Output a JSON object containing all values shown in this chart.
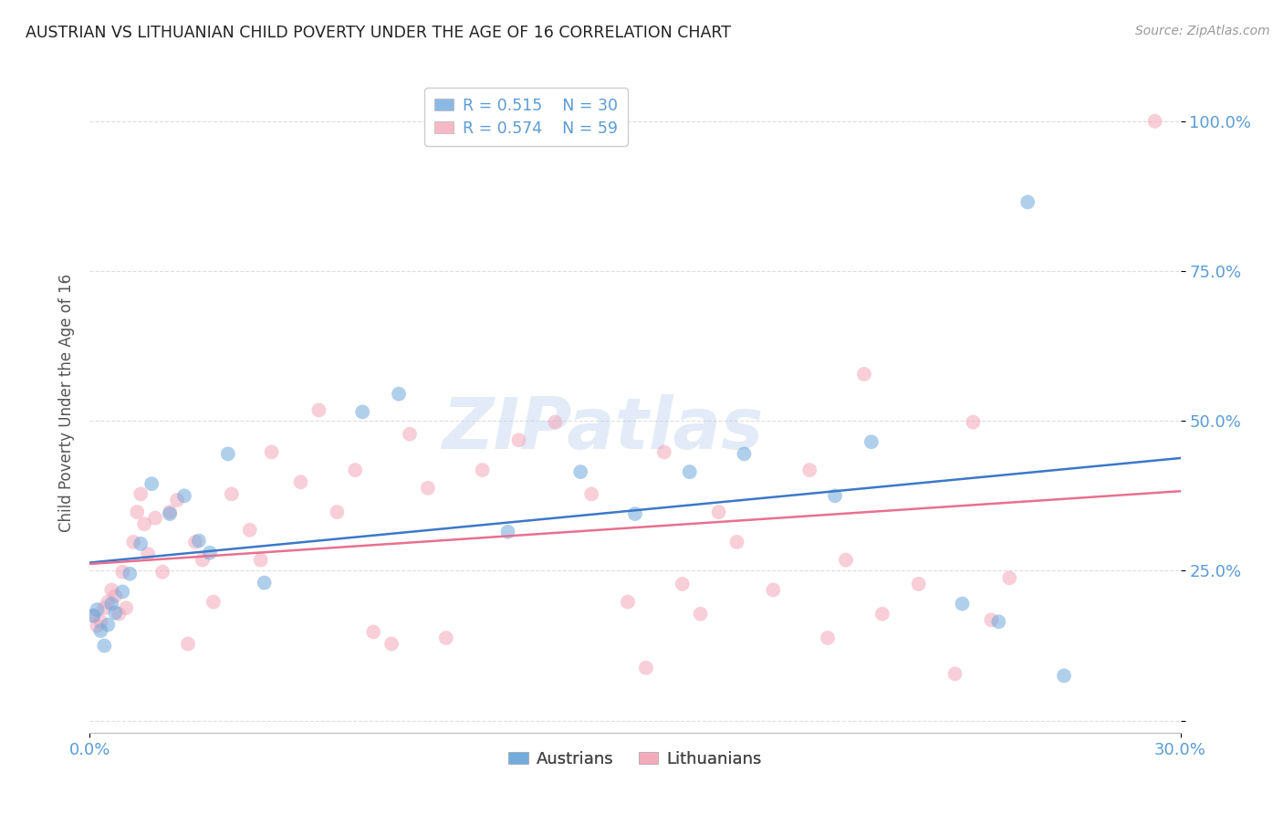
{
  "title": "AUSTRIAN VS LITHUANIAN CHILD POVERTY UNDER THE AGE OF 16 CORRELATION CHART",
  "source": "Source: ZipAtlas.com",
  "ylabel": "Child Poverty Under the Age of 16",
  "xlim": [
    0.0,
    0.3
  ],
  "ylim": [
    -0.02,
    1.08
  ],
  "yticks": [
    0.0,
    0.25,
    0.5,
    0.75,
    1.0
  ],
  "ytick_labels": [
    "",
    "25.0%",
    "50.0%",
    "75.0%",
    "100.0%"
  ],
  "xtick_labels": [
    "0.0%",
    "30.0%"
  ],
  "legend_r_austrians": "R = 0.515",
  "legend_n_austrians": "N = 30",
  "legend_r_lithuanians": "R = 0.574",
  "legend_n_lithuanians": "N = 59",
  "color_austrians": "#6fa8dc",
  "color_lithuanians": "#f4a7b9",
  "trendline_color_austrians": "#3c78c8",
  "trendline_color_lithuanians": "#e87090",
  "background_color": "#ffffff",
  "title_color": "#222222",
  "axis_label_color": "#555555",
  "tick_label_color": "#5b9bd5",
  "grid_color": "#dddddd",
  "austrians_x": [
    0.001,
    0.002,
    0.003,
    0.004,
    0.005,
    0.006,
    0.007,
    0.009,
    0.011,
    0.014,
    0.017,
    0.022,
    0.026,
    0.03,
    0.033,
    0.038,
    0.048,
    0.075,
    0.085,
    0.115,
    0.135,
    0.15,
    0.165,
    0.18,
    0.205,
    0.215,
    0.24,
    0.25,
    0.258,
    0.268
  ],
  "austrians_y": [
    0.175,
    0.185,
    0.15,
    0.125,
    0.16,
    0.195,
    0.18,
    0.215,
    0.245,
    0.295,
    0.395,
    0.345,
    0.375,
    0.3,
    0.28,
    0.445,
    0.23,
    0.515,
    0.545,
    0.315,
    0.415,
    0.345,
    0.415,
    0.445,
    0.375,
    0.465,
    0.195,
    0.165,
    0.865,
    0.075
  ],
  "lithuanians_x": [
    0.001,
    0.002,
    0.003,
    0.004,
    0.005,
    0.006,
    0.007,
    0.008,
    0.009,
    0.01,
    0.012,
    0.013,
    0.014,
    0.015,
    0.016,
    0.018,
    0.02,
    0.022,
    0.024,
    0.027,
    0.029,
    0.031,
    0.034,
    0.039,
    0.044,
    0.047,
    0.05,
    0.058,
    0.063,
    0.068,
    0.073,
    0.078,
    0.083,
    0.088,
    0.093,
    0.098,
    0.108,
    0.118,
    0.128,
    0.138,
    0.148,
    0.153,
    0.158,
    0.163,
    0.168,
    0.173,
    0.178,
    0.188,
    0.198,
    0.203,
    0.208,
    0.213,
    0.218,
    0.228,
    0.238,
    0.243,
    0.248,
    0.253,
    0.293
  ],
  "lithuanians_y": [
    0.175,
    0.158,
    0.165,
    0.188,
    0.198,
    0.218,
    0.208,
    0.178,
    0.248,
    0.188,
    0.298,
    0.348,
    0.378,
    0.328,
    0.278,
    0.338,
    0.248,
    0.348,
    0.368,
    0.128,
    0.298,
    0.268,
    0.198,
    0.378,
    0.318,
    0.268,
    0.448,
    0.398,
    0.518,
    0.348,
    0.418,
    0.148,
    0.128,
    0.478,
    0.388,
    0.138,
    0.418,
    0.468,
    0.498,
    0.378,
    0.198,
    0.088,
    0.448,
    0.228,
    0.178,
    0.348,
    0.298,
    0.218,
    0.418,
    0.138,
    0.268,
    0.578,
    0.178,
    0.228,
    0.078,
    0.498,
    0.168,
    0.238,
    1.0
  ],
  "marker_size": 130,
  "alpha_scatter": 0.55,
  "watermark_text": "ZIPatlas",
  "watermark_color": "#c0d4ee",
  "watermark_alpha": 0.45
}
